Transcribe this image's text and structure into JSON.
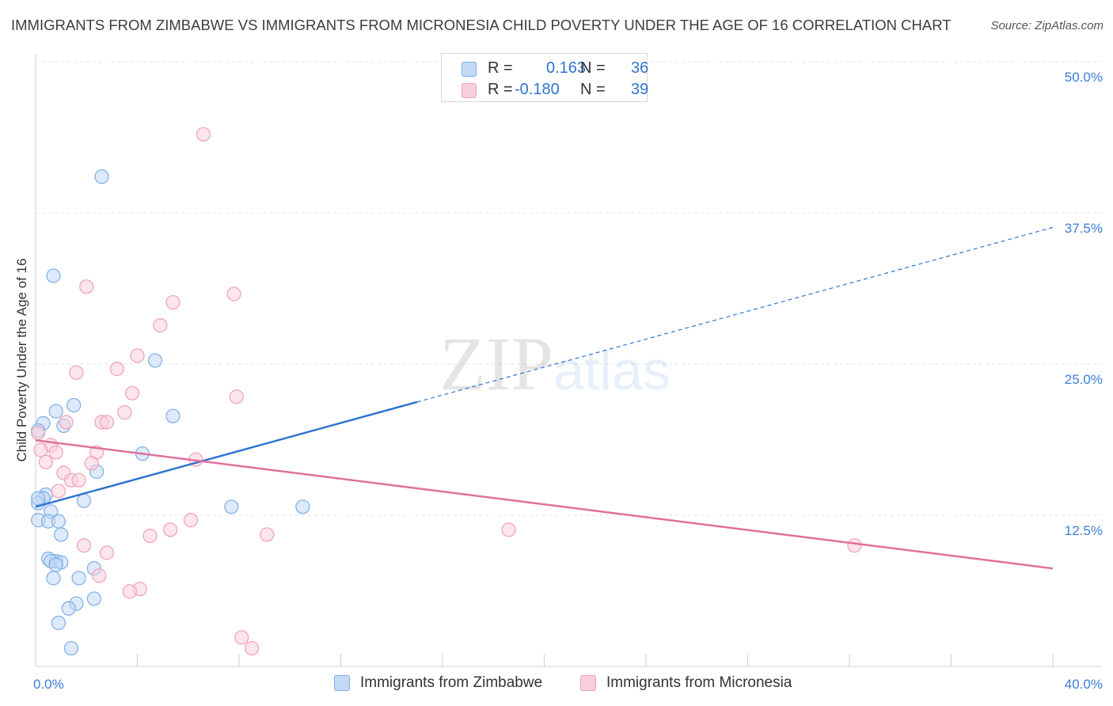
{
  "chart_data": {
    "type": "scatter",
    "title": "IMMIGRANTS FROM ZIMBABWE VS IMMIGRANTS FROM MICRONESIA CHILD POVERTY UNDER THE AGE OF 16 CORRELATION CHART",
    "source": "Source: ZipAtlas.com",
    "xlabel": "",
    "ylabel": "Child Poverty Under the Age of 16",
    "xlim": [
      0,
      40
    ],
    "ylim": [
      0,
      50
    ],
    "x_tick_labels": [
      "0.0%",
      "40.0%"
    ],
    "y_ticks": [
      12.5,
      25.0,
      37.5,
      50.0
    ],
    "y_tick_labels": [
      "12.5%",
      "25.0%",
      "37.5%",
      "50.0%"
    ],
    "grid": true,
    "watermark": "ZIPatlas",
    "legend": {
      "rows": [
        {
          "r_label": "R =",
          "r_value": "0.163",
          "n_label": "N =",
          "n_value": "36"
        },
        {
          "r_label": "R =",
          "r_value": "-0.180",
          "n_label": "N =",
          "n_value": "39"
        }
      ]
    },
    "series": [
      {
        "name": "Immigrants from Zimbabwe",
        "color": "#7aaee8",
        "fill": "#c3d9f5",
        "line_color": "#2f74cf",
        "trend": {
          "x0": 0,
          "y0": 13.2,
          "x_solid_end": 15.0,
          "x1": 40,
          "y1": 36.3
        },
        "points": [
          [
            2.6,
            40.5
          ],
          [
            0.7,
            32.3
          ],
          [
            4.7,
            25.3
          ],
          [
            1.5,
            21.6
          ],
          [
            0.8,
            21.1
          ],
          [
            5.4,
            20.7
          ],
          [
            0.3,
            20.1
          ],
          [
            1.1,
            19.9
          ],
          [
            0.1,
            19.5
          ],
          [
            4.2,
            17.6
          ],
          [
            2.4,
            16.1
          ],
          [
            0.4,
            14.2
          ],
          [
            0.3,
            13.9
          ],
          [
            1.9,
            13.7
          ],
          [
            0.1,
            13.5
          ],
          [
            7.7,
            13.2
          ],
          [
            10.5,
            13.2
          ],
          [
            0.6,
            12.8
          ],
          [
            0.1,
            12.1
          ],
          [
            0.5,
            12.0
          ],
          [
            0.9,
            12.0
          ],
          [
            1.0,
            10.9
          ],
          [
            0.5,
            8.9
          ],
          [
            0.8,
            8.7
          ],
          [
            0.6,
            8.7
          ],
          [
            1.0,
            8.6
          ],
          [
            0.8,
            8.4
          ],
          [
            2.3,
            8.1
          ],
          [
            0.7,
            7.3
          ],
          [
            1.7,
            7.3
          ],
          [
            2.3,
            5.6
          ],
          [
            1.6,
            5.2
          ],
          [
            1.3,
            4.8
          ],
          [
            0.9,
            3.6
          ],
          [
            1.4,
            1.5
          ],
          [
            0.1,
            13.9
          ]
        ]
      },
      {
        "name": "Immigrants from Micronesia",
        "color": "#f0a0b8",
        "fill": "#f9cfdb",
        "line_color": "#e0709a",
        "trend": {
          "x0": 0,
          "y0": 18.7,
          "x1": 40,
          "y1": 8.1
        },
        "points": [
          [
            6.6,
            44.0
          ],
          [
            2.0,
            31.4
          ],
          [
            7.8,
            30.8
          ],
          [
            5.4,
            30.1
          ],
          [
            4.9,
            28.2
          ],
          [
            4.0,
            25.7
          ],
          [
            3.2,
            24.6
          ],
          [
            1.6,
            24.3
          ],
          [
            3.8,
            22.6
          ],
          [
            7.9,
            22.3
          ],
          [
            3.5,
            21.0
          ],
          [
            1.2,
            20.2
          ],
          [
            2.6,
            20.2
          ],
          [
            2.8,
            20.2
          ],
          [
            0.1,
            19.3
          ],
          [
            0.6,
            18.3
          ],
          [
            0.2,
            17.9
          ],
          [
            0.8,
            17.7
          ],
          [
            2.4,
            17.7
          ],
          [
            6.3,
            17.1
          ],
          [
            0.4,
            16.9
          ],
          [
            2.2,
            16.8
          ],
          [
            1.1,
            16.0
          ],
          [
            1.4,
            15.4
          ],
          [
            1.7,
            15.4
          ],
          [
            0.9,
            14.5
          ],
          [
            6.1,
            12.1
          ],
          [
            5.3,
            11.3
          ],
          [
            18.6,
            11.3
          ],
          [
            9.1,
            10.9
          ],
          [
            4.5,
            10.8
          ],
          [
            1.9,
            10.0
          ],
          [
            2.8,
            9.4
          ],
          [
            2.5,
            7.5
          ],
          [
            4.1,
            6.4
          ],
          [
            3.7,
            6.2
          ],
          [
            8.1,
            2.4
          ],
          [
            8.5,
            1.5
          ],
          [
            32.2,
            10.0
          ]
        ]
      }
    ]
  }
}
